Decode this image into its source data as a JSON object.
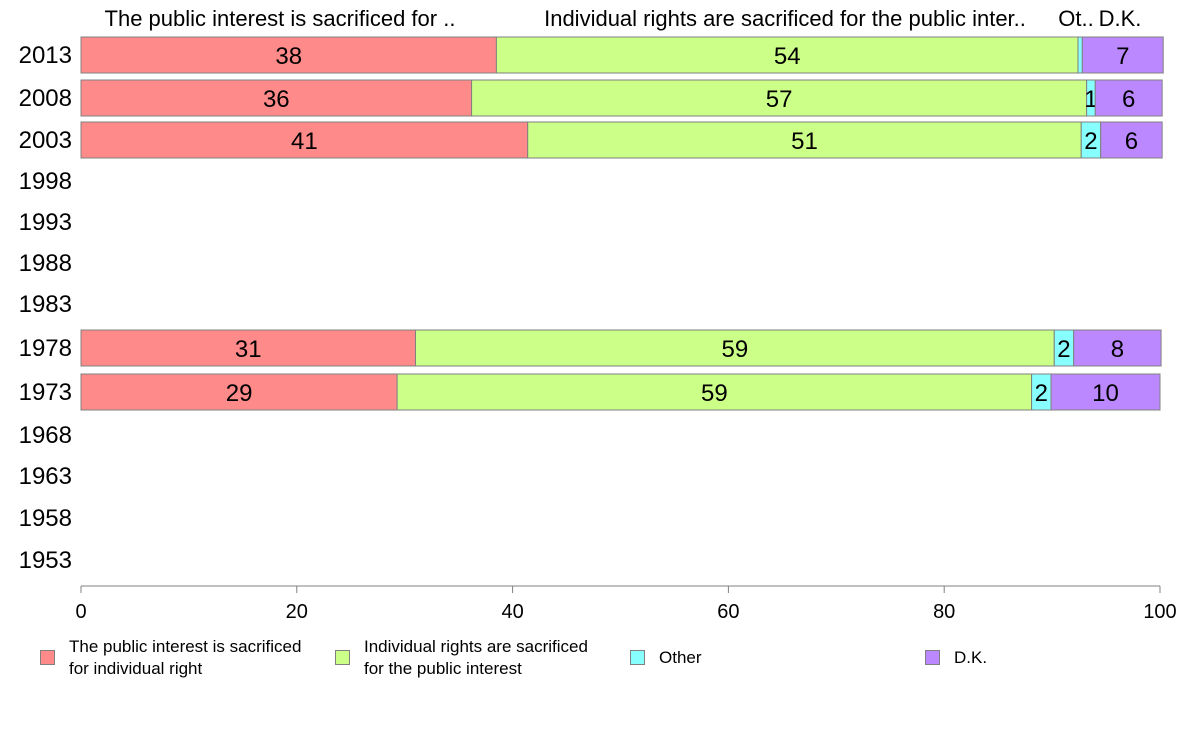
{
  "chart_data": {
    "type": "bar",
    "orientation": "horizontal",
    "stacked": true,
    "column_headers": [
      "The public interest is sacrificed for ..",
      "Individual rights are sacrificed for the public inter..",
      "Ot..",
      "D.K."
    ],
    "categories": [
      "2013",
      "2008",
      "2003",
      "1998",
      "1993",
      "1988",
      "1983",
      "1978",
      "1973",
      "1968",
      "1963",
      "1958",
      "1953"
    ],
    "series": [
      {
        "name": "The public interest is sacrificed\nfor individual right",
        "color": "#ff8a8a",
        "values": [
          38.5,
          36.2,
          41.4,
          null,
          null,
          null,
          null,
          31.0,
          29.3,
          null,
          null,
          null,
          null
        ],
        "labels": [
          "38",
          "36",
          "41",
          "",
          "",
          "",
          "",
          "31",
          "29",
          "",
          "",
          "",
          ""
        ]
      },
      {
        "name": "Individual rights are sacrificed\nfor the public interest",
        "color": "#ccff88",
        "values": [
          53.9,
          57.0,
          51.3,
          null,
          null,
          null,
          null,
          59.2,
          58.8,
          null,
          null,
          null,
          null
        ],
        "labels": [
          "54",
          "57",
          "51",
          "",
          "",
          "",
          "",
          "59",
          "59",
          "",
          "",
          "",
          ""
        ]
      },
      {
        "name": "Other",
        "color": "#88ffff",
        "values": [
          0.4,
          0.8,
          1.8,
          null,
          null,
          null,
          null,
          1.8,
          1.8,
          null,
          null,
          null,
          null
        ],
        "labels": [
          "",
          "1",
          "2",
          "",
          "",
          "",
          "",
          "2",
          "2",
          "",
          "",
          "",
          ""
        ]
      },
      {
        "name": "D.K.",
        "color": "#bb88ff",
        "values": [
          7.5,
          6.2,
          5.7,
          null,
          null,
          null,
          null,
          8.1,
          10.1,
          null,
          null,
          null,
          null
        ],
        "labels": [
          "7",
          "6",
          "6",
          "",
          "",
          "",
          "",
          "8",
          "10",
          "",
          "",
          "",
          ""
        ]
      }
    ],
    "xlim": [
      0,
      100
    ],
    "xticks": [
      "0",
      "20",
      "40",
      "60",
      "80",
      "100"
    ],
    "legend_position": "bottom",
    "grid": false
  }
}
